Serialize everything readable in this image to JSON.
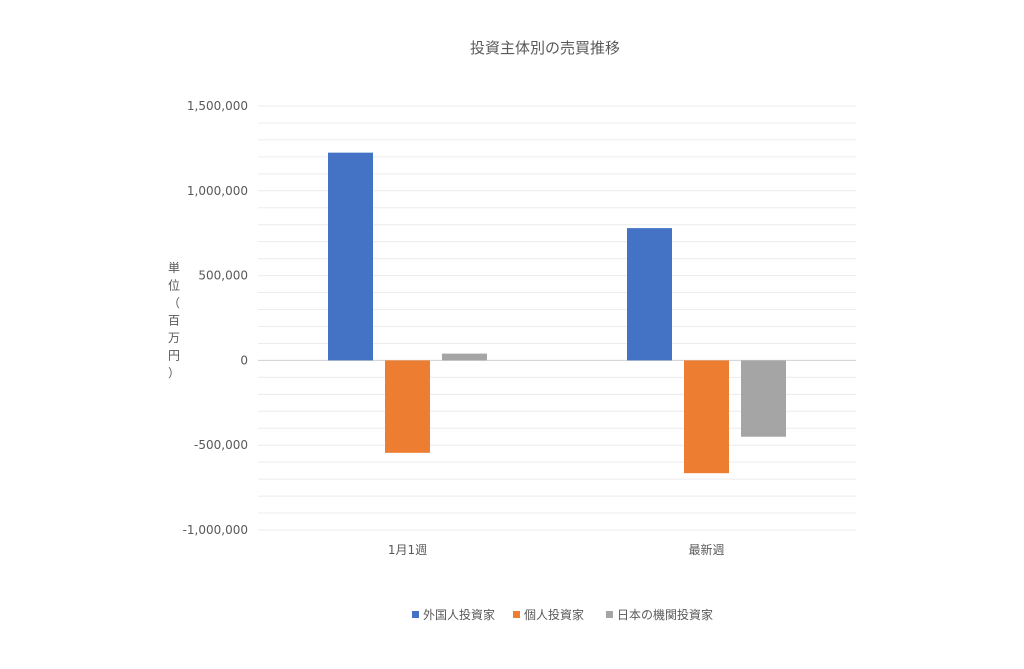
{
  "chart_data": {
    "type": "bar",
    "title": "投資主体別の売買推移",
    "ylabel": "単位（百万円）",
    "xlabel": "",
    "categories": [
      "1月1週",
      "最新週"
    ],
    "series": [
      {
        "name": "外国人投資家",
        "color": "#4472c4",
        "values": [
          1225000,
          780000
        ]
      },
      {
        "name": "個人投資家",
        "color": "#ed7d31",
        "values": [
          -545000,
          -665000
        ]
      },
      {
        "name": "日本の機関投資家",
        "color": "#a5a5a5",
        "values": [
          40000,
          -450000
        ]
      }
    ],
    "ylim": [
      -1000000,
      1500000
    ],
    "yticks": [
      1500000,
      1000000,
      500000,
      0,
      -500000,
      -1000000
    ],
    "ytick_labels": [
      "1,500,000",
      "1,000,000",
      "500,000",
      "0",
      "-500,000",
      "-1,000,000"
    ],
    "grid": true,
    "legend": "bottom"
  }
}
